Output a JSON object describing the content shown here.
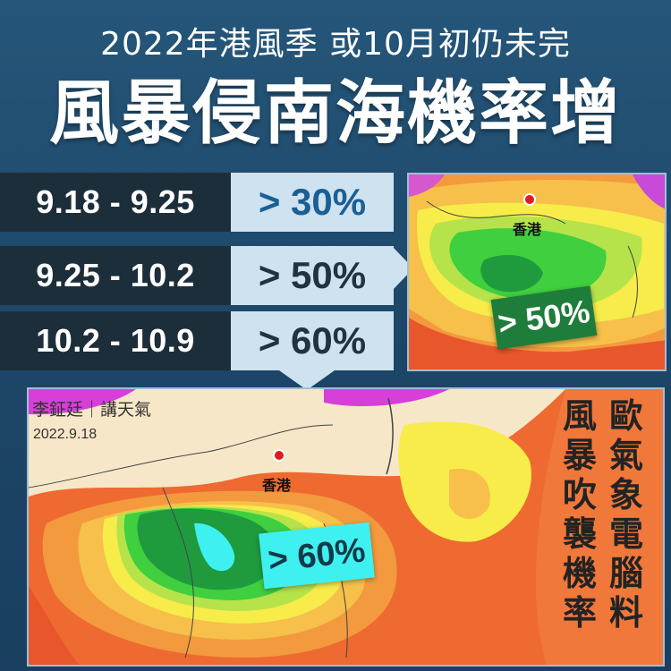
{
  "header": {
    "subtitle": "2022年港風季 或10月初仍未完",
    "headline": "風暴侵南海機率增"
  },
  "periods": [
    {
      "dates": "9.18 - 9.25",
      "probability": "> 30%"
    },
    {
      "dates": "9.25 - 10.2",
      "probability": "> 50%"
    },
    {
      "dates": "10.2 - 10.9",
      "probability": "> 60%"
    }
  ],
  "map_top": {
    "city_label": "香港",
    "badge": "> 50%"
  },
  "map_bottom": {
    "city_label": "香港",
    "badge": "> 60%",
    "byline": "李鉦廷｜講天氣",
    "date": "2022.9.18",
    "vertical_col1": "歐氣象電腦料",
    "vertical_col2": "風暴吹襲機率"
  },
  "colors": {
    "background": "#1f4a6e",
    "date_box": "#1d2e3b",
    "pct_box": "#cfe2ef",
    "highlight_blue": "#1a5f95",
    "badge_green": "#1e7d3a",
    "badge_cyan": "#3ff0f0",
    "hk_marker": "#e11b22"
  },
  "icons": {
    "location_marker": "red-dot-icon",
    "arrow_right": "arrow-right-icon",
    "arrow_down": "arrow-down-icon"
  }
}
